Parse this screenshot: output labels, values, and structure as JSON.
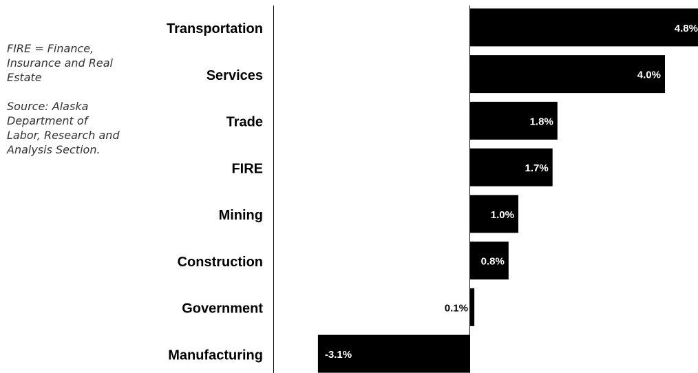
{
  "chart_data": {
    "type": "bar",
    "orientation": "horizontal",
    "categories": [
      "Transportation",
      "Services",
      "Trade",
      "FIRE",
      "Mining",
      "Construction",
      "Government",
      "Manufacturing"
    ],
    "values": [
      4.8,
      4.0,
      1.8,
      1.7,
      1.0,
      0.8,
      0.1,
      -3.1
    ],
    "value_labels": [
      "4.8%",
      "4.0%",
      "1.8%",
      "1.7%",
      "1.0%",
      "0.8%",
      "0.1%",
      "-3.1%"
    ],
    "color": "#000000",
    "notes": [
      "FIRE = Finance, Insurance and Real Estate",
      "Source: Alaska Department of Labor, Research and Analysis Section."
    ]
  }
}
